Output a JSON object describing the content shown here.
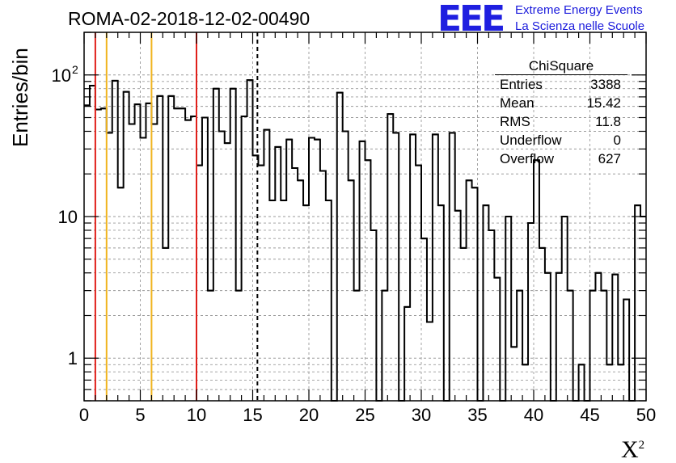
{
  "title": "ROMA-02-2018-12-02-00490",
  "brand": {
    "logo": "EEE",
    "line1": "Extreme Energy Events",
    "line2": "La Scienza nelle Scuole",
    "logo_color": "#1f1fe0",
    "text_color": "#1a1adc"
  },
  "axes": {
    "ylabel": "Entries/bin",
    "xlabel_base": "X",
    "xlabel_sup": "2"
  },
  "stats": {
    "title": "ChiSquare",
    "rows": [
      {
        "key": "Entries",
        "value": "3388"
      },
      {
        "key": "Mean",
        "value": "15.42"
      },
      {
        "key": "RMS",
        "value": "11.8"
      },
      {
        "key": "Underflow",
        "value": "0"
      },
      {
        "key": "Overflow",
        "value": "627"
      }
    ]
  },
  "chart_data": {
    "type": "histogram",
    "x_range": [
      0,
      50
    ],
    "bin_width": 0.5,
    "y_scale": "log",
    "y_range": [
      0.5,
      200
    ],
    "x_ticks": [
      0,
      5,
      10,
      15,
      20,
      25,
      30,
      35,
      40,
      45,
      50
    ],
    "y_tick_labels": [
      {
        "value": 1,
        "label": "1"
      },
      {
        "value": 10,
        "label": "10"
      },
      {
        "value": 100,
        "label": "10",
        "sup": "2"
      }
    ],
    "grid": true,
    "values": [
      61,
      84,
      57,
      58,
      39,
      91,
      16,
      76,
      45,
      62,
      36,
      63,
      45,
      71,
      6,
      71,
      58,
      58,
      48,
      51,
      23,
      50,
      3,
      80,
      40,
      33,
      80,
      3,
      51,
      92,
      27,
      23,
      41,
      13,
      31,
      13,
      35,
      22,
      18,
      12,
      36,
      35,
      21,
      13,
      0.5,
      75,
      40,
      18,
      3,
      34,
      25,
      8,
      0.5,
      3,
      53,
      39,
      0.5,
      2.3,
      38,
      23,
      7,
      1.8,
      38,
      12,
      0.5,
      39,
      11,
      6,
      18,
      16,
      0.5,
      12,
      8,
      3.7,
      0.5,
      10,
      1.2,
      3,
      0.9,
      9,
      25,
      6,
      4,
      0.5,
      4,
      10,
      3,
      0.5,
      0.9,
      0.5,
      3,
      4,
      3,
      0.9,
      3.9,
      0.9,
      2.6,
      0.5,
      12,
      10
    ],
    "vertical_lines": [
      {
        "x": 1,
        "color": "#e0201a",
        "style": "solid"
      },
      {
        "x": 2,
        "color": "#f0b41e",
        "style": "solid"
      },
      {
        "x": 6,
        "color": "#f0b41e",
        "style": "solid"
      },
      {
        "x": 10,
        "color": "#e0201a",
        "style": "solid"
      },
      {
        "x": 15.42,
        "color": "#000000",
        "style": "dashed"
      }
    ]
  }
}
